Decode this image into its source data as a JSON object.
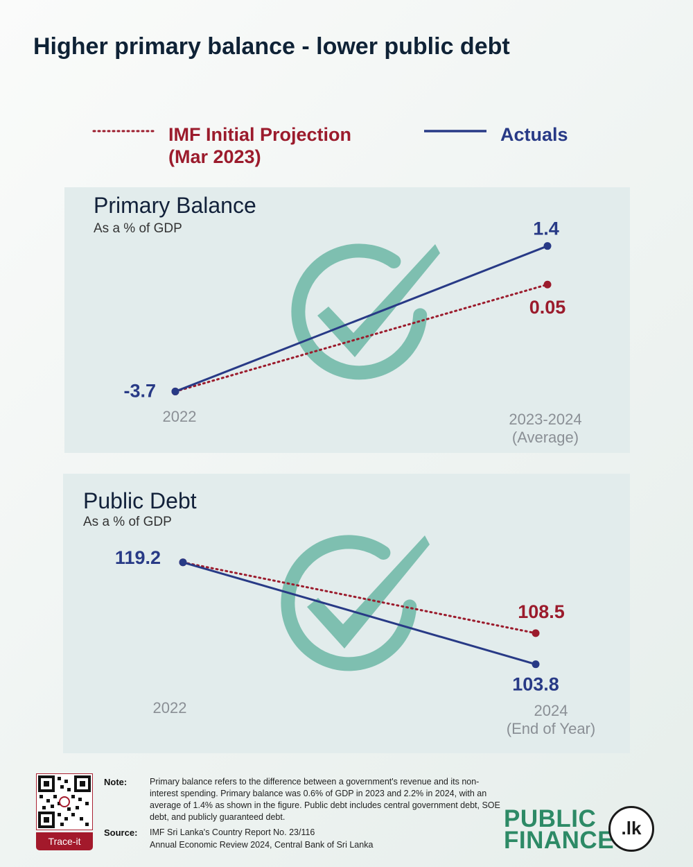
{
  "title": "Higher primary balance - lower public debt",
  "legend": {
    "projection_line1": "IMF Initial Projection",
    "projection_line2": "(Mar 2023)",
    "actuals": "Actuals",
    "projection_color": "#9b1b2c",
    "actuals_color": "#283a86"
  },
  "chart_data": [
    {
      "type": "line",
      "title": "Primary Balance",
      "subtitle": "As a % of GDP",
      "categories": [
        "2022",
        "2023-2024|(Average)"
      ],
      "series": [
        {
          "name": "IMF Initial Projection (Mar 2023)",
          "style": "dotted",
          "color": "#9b1b2c",
          "values": [
            -3.7,
            0.05
          ],
          "labels": [
            "",
            "0.05"
          ]
        },
        {
          "name": "Actuals",
          "style": "solid",
          "color": "#283a86",
          "values": [
            -3.7,
            1.4
          ],
          "labels": [
            "-3.7",
            "1.4"
          ]
        }
      ],
      "ylim": [
        -4.2,
        2.0
      ],
      "grid": false,
      "background_icon": "check-circle-icon"
    },
    {
      "type": "line",
      "title": "Public Debt",
      "subtitle": "As a % of GDP",
      "categories": [
        "2022",
        "2024|(End of Year)"
      ],
      "series": [
        {
          "name": "IMF Initial Projection (Mar 2023)",
          "style": "dotted",
          "color": "#9b1b2c",
          "values": [
            119.2,
            108.5
          ],
          "labels": [
            "",
            "108.5"
          ]
        },
        {
          "name": "Actuals",
          "style": "solid",
          "color": "#283a86",
          "values": [
            119.2,
            103.8
          ],
          "labels": [
            "119.2",
            "103.8"
          ]
        }
      ],
      "ylim": [
        98,
        124
      ],
      "grid": false,
      "background_icon": "check-circle-icon"
    }
  ],
  "footer": {
    "note_label": "Note:",
    "note_text": "Primary balance refers to the difference between a government's revenue and its non-interest spending. Primary balance was 0.6% of GDP in 2023 and 2.2% in 2024, with an average of 1.4% as shown in the figure. Public debt includes central government debt, SOE debt, and publicly guaranteed debt.",
    "source_label": "Source:",
    "source_line1": "IMF Sri Lanka's Country Report No. 23/116",
    "source_line2": "Annual Economic Review 2024, Central Bank of Sri Lanka",
    "trace_label": "Trace-it",
    "brand_line1": "PUBLIC",
    "brand_line2": "FINANCE",
    "brand_badge": ".lk",
    "qr_icon": "qr-code-icon"
  }
}
